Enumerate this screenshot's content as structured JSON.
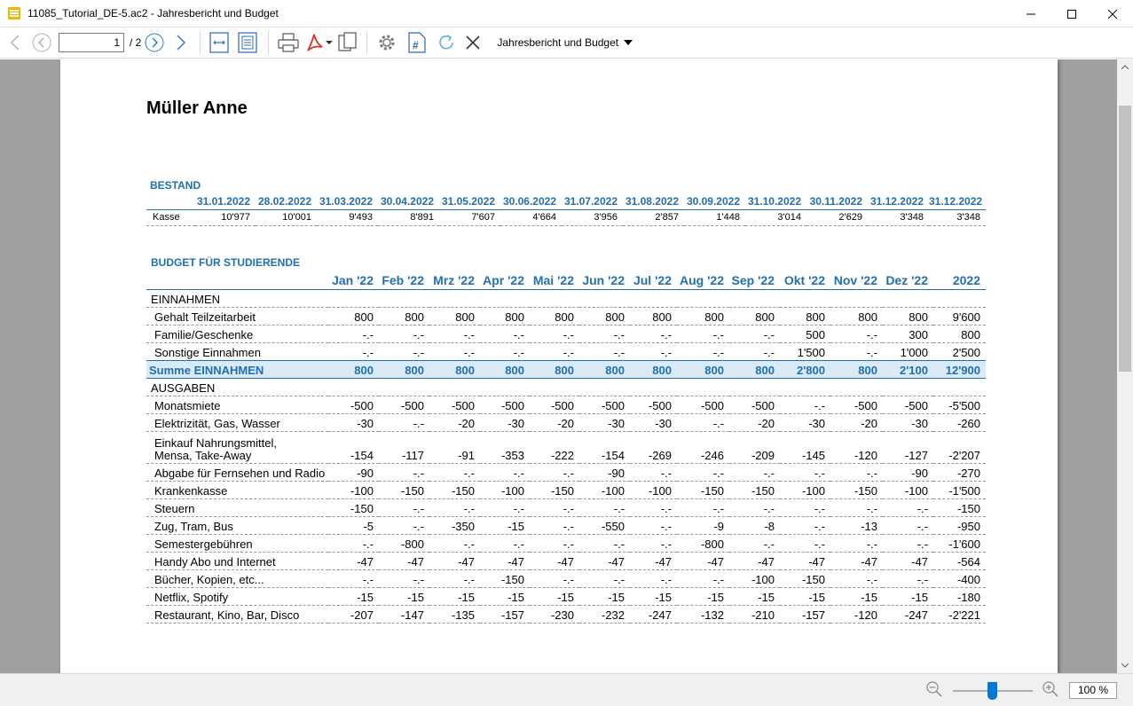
{
  "window": {
    "title": "11085_Tutorial_DE-5.ac2 - Jahresbericht und Budget",
    "minimize": "—",
    "maximize": "☐",
    "close": "✕"
  },
  "toolbar": {
    "page_current": "1",
    "page_total": "/ 2",
    "report_name": "Jahresbericht und Budget"
  },
  "report": {
    "owner": "Müller Anne",
    "bestand": {
      "title": "BESTAND",
      "dates": [
        "31.01.2022",
        "28.02.2022",
        "31.03.2022",
        "30.04.2022",
        "31.05.2022",
        "30.06.2022",
        "31.07.2022",
        "31.08.2022",
        "30.09.2022",
        "31.10.2022",
        "30.11.2022",
        "31.12.2022",
        "31.12.2022"
      ],
      "rows": [
        {
          "label": "Kasse",
          "values": [
            "10'977",
            "10'001",
            "9'493",
            "8'891",
            "7'607",
            "4'664",
            "3'956",
            "2'857",
            "1'448",
            "3'014",
            "2'629",
            "3'348",
            "3'348"
          ]
        }
      ]
    },
    "budget": {
      "title": "BUDGET FÜR STUDIERENDE",
      "columns": [
        "Jan '22",
        "Feb '22",
        "Mrz '22",
        "Apr '22",
        "Mai '22",
        "Jun '22",
        "Jul '22",
        "Aug '22",
        "Sep '22",
        "Okt '22",
        "Nov '22",
        "Dez '22",
        "2022"
      ],
      "rows": [
        {
          "type": "group",
          "label": "EINNAHMEN",
          "values": []
        },
        {
          "type": "item",
          "label": "Gehalt Teilzeitarbeit",
          "values": [
            "800",
            "800",
            "800",
            "800",
            "800",
            "800",
            "800",
            "800",
            "800",
            "800",
            "800",
            "800",
            "9'600"
          ]
        },
        {
          "type": "item",
          "label": "Familie/Geschenke",
          "values": [
            "-.-",
            "-.-",
            "-.-",
            "-.-",
            "-.-",
            "-.-",
            "-.-",
            "-.-",
            "-.-",
            "500",
            "-.-",
            "300",
            "800"
          ]
        },
        {
          "type": "item",
          "label": "Sonstige Einnahmen",
          "values": [
            "-.-",
            "-.-",
            "-.-",
            "-.-",
            "-.-",
            "-.-",
            "-.-",
            "-.-",
            "-.-",
            "1'500",
            "-.-",
            "1'000",
            "2'500"
          ]
        },
        {
          "type": "sum",
          "label": "Summe EINNAHMEN",
          "values": [
            "800",
            "800",
            "800",
            "800",
            "800",
            "800",
            "800",
            "800",
            "800",
            "2'800",
            "800",
            "2'100",
            "12'900"
          ]
        },
        {
          "type": "group",
          "label": "AUSGABEN",
          "values": []
        },
        {
          "type": "item",
          "label": "Monatsmiete",
          "values": [
            "-500",
            "-500",
            "-500",
            "-500",
            "-500",
            "-500",
            "-500",
            "-500",
            "-500",
            "-.-",
            "-500",
            "-500",
            "-5'500"
          ]
        },
        {
          "type": "item",
          "label": "Elektrizität, Gas, Wasser",
          "values": [
            "-30",
            "-.-",
            "-20",
            "-30",
            "-20",
            "-30",
            "-30",
            "-.-",
            "-20",
            "-30",
            "-20",
            "-30",
            "-260"
          ]
        },
        {
          "type": "tall",
          "label": "Einkauf Nahrungsmittel,",
          "label2": "Mensa, Take-Away",
          "values": [
            "-154",
            "-117",
            "-91",
            "-353",
            "-222",
            "-154",
            "-269",
            "-246",
            "-209",
            "-145",
            "-120",
            "-127",
            "-2'207"
          ]
        },
        {
          "type": "item",
          "label": "Abgabe für Fernsehen und Radio",
          "values": [
            "-90",
            "-.-",
            "-.-",
            "-.-",
            "-.-",
            "-90",
            "-.-",
            "-.-",
            "-.-",
            "-.-",
            "-.-",
            "-90",
            "-270"
          ]
        },
        {
          "type": "item",
          "label": "Krankenkasse",
          "values": [
            "-100",
            "-150",
            "-150",
            "-100",
            "-150",
            "-100",
            "-100",
            "-150",
            "-150",
            "-100",
            "-150",
            "-100",
            "-1'500"
          ]
        },
        {
          "type": "item",
          "label": "Steuern",
          "values": [
            "-150",
            "-.-",
            "-.-",
            "-.-",
            "-.-",
            "-.-",
            "-.-",
            "-.-",
            "-.-",
            "-.-",
            "-.-",
            "-.-",
            "-150"
          ]
        },
        {
          "type": "item",
          "label": "Zug, Tram, Bus",
          "values": [
            "-5",
            "-.-",
            "-350",
            "-15",
            "-.-",
            "-550",
            "-.-",
            "-9",
            "-8",
            "-.-",
            "-13",
            "-.-",
            "-950"
          ]
        },
        {
          "type": "item",
          "label": "Semestergebühren",
          "values": [
            "-.-",
            "-800",
            "-.-",
            "-.-",
            "-.-",
            "-.-",
            "-.-",
            "-800",
            "-.-",
            "-.-",
            "-.-",
            "-.-",
            "-1'600"
          ]
        },
        {
          "type": "item",
          "label": "Handy Abo und Internet",
          "values": [
            "-47",
            "-47",
            "-47",
            "-47",
            "-47",
            "-47",
            "-47",
            "-47",
            "-47",
            "-47",
            "-47",
            "-47",
            "-564"
          ]
        },
        {
          "type": "item",
          "label": "Bücher, Kopien, etc...",
          "values": [
            "-.-",
            "-.-",
            "-.-",
            "-150",
            "-.-",
            "-.-",
            "-.-",
            "-.-",
            "-100",
            "-150",
            "-.-",
            "-.-",
            "-400"
          ]
        },
        {
          "type": "item",
          "label": "Netflix, Spotify",
          "values": [
            "-15",
            "-15",
            "-15",
            "-15",
            "-15",
            "-15",
            "-15",
            "-15",
            "-15",
            "-15",
            "-15",
            "-15",
            "-180"
          ]
        },
        {
          "type": "item",
          "label": "Restaurant, Kino, Bar, Disco",
          "values": [
            "-207",
            "-147",
            "-135",
            "-157",
            "-230",
            "-232",
            "-247",
            "-132",
            "-210",
            "-157",
            "-120",
            "-247",
            "-2'221"
          ]
        }
      ]
    }
  },
  "statusbar": {
    "zoom": "100 %",
    "zoom_level_fraction": 0.5
  }
}
